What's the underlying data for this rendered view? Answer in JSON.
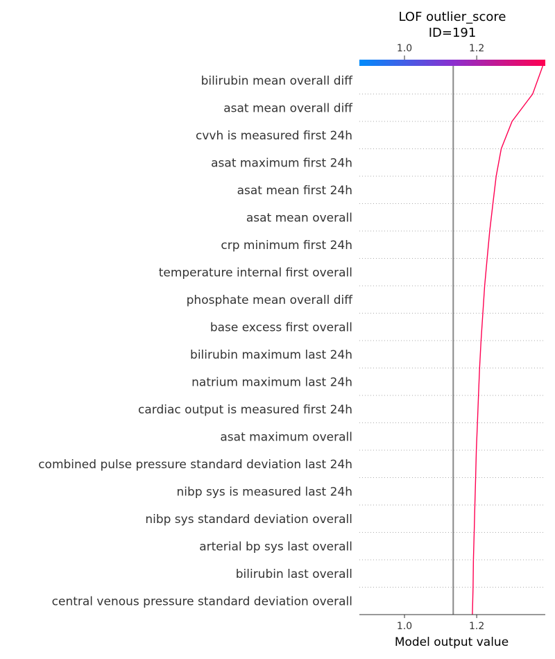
{
  "chart_data": {
    "type": "line",
    "title": "LOF outlier_score",
    "subtitle": "ID=191",
    "xlabel": "Model output value",
    "ylabel": "",
    "xlim": [
      0.875,
      1.39
    ],
    "x_ticks": [
      1.0,
      1.2
    ],
    "x_tick_labels": [
      "1.0",
      "1.2"
    ],
    "top_tick_labels": [
      "1.0",
      "1.2"
    ],
    "base_value": 1.135,
    "grid": "dotted horizontal row separators",
    "colormap": [
      "#008bfb",
      "#ff0051"
    ],
    "base_line_color": "#888888",
    "line_color": "#ff0051",
    "features": [
      "bilirubin  mean  overall  diff",
      "asat  mean  overall  diff",
      "cvvh  is measured  first 24h",
      "asat  maximum  first 24h",
      "asat  mean  first 24h",
      "asat  mean  overall",
      "crp  minimum  first 24h",
      "temperature internal  first  overall",
      "phosphate  mean  overall  diff",
      "base excess  first  overall",
      "bilirubin  maximum  last 24h",
      "natrium  maximum  last 24h",
      "cardiac output  is measured  first 24h",
      "asat  maximum  overall",
      "combined pulse pressure  standard deviation  last 24h",
      "nibp sys  is measured  last 24h",
      "nibp sys  standard deviation  overall",
      "arterial bp sys  last  overall",
      "bilirubin  last  overall",
      "central venous pressure  standard deviation  overall"
    ],
    "cumulative_values": [
      1.383,
      1.355,
      1.298,
      1.268,
      1.254,
      1.245,
      1.236,
      1.229,
      1.222,
      1.217,
      1.212,
      1.208,
      1.205,
      1.202,
      1.199,
      1.197,
      1.195,
      1.193,
      1.191,
      1.19,
      1.188
    ]
  }
}
